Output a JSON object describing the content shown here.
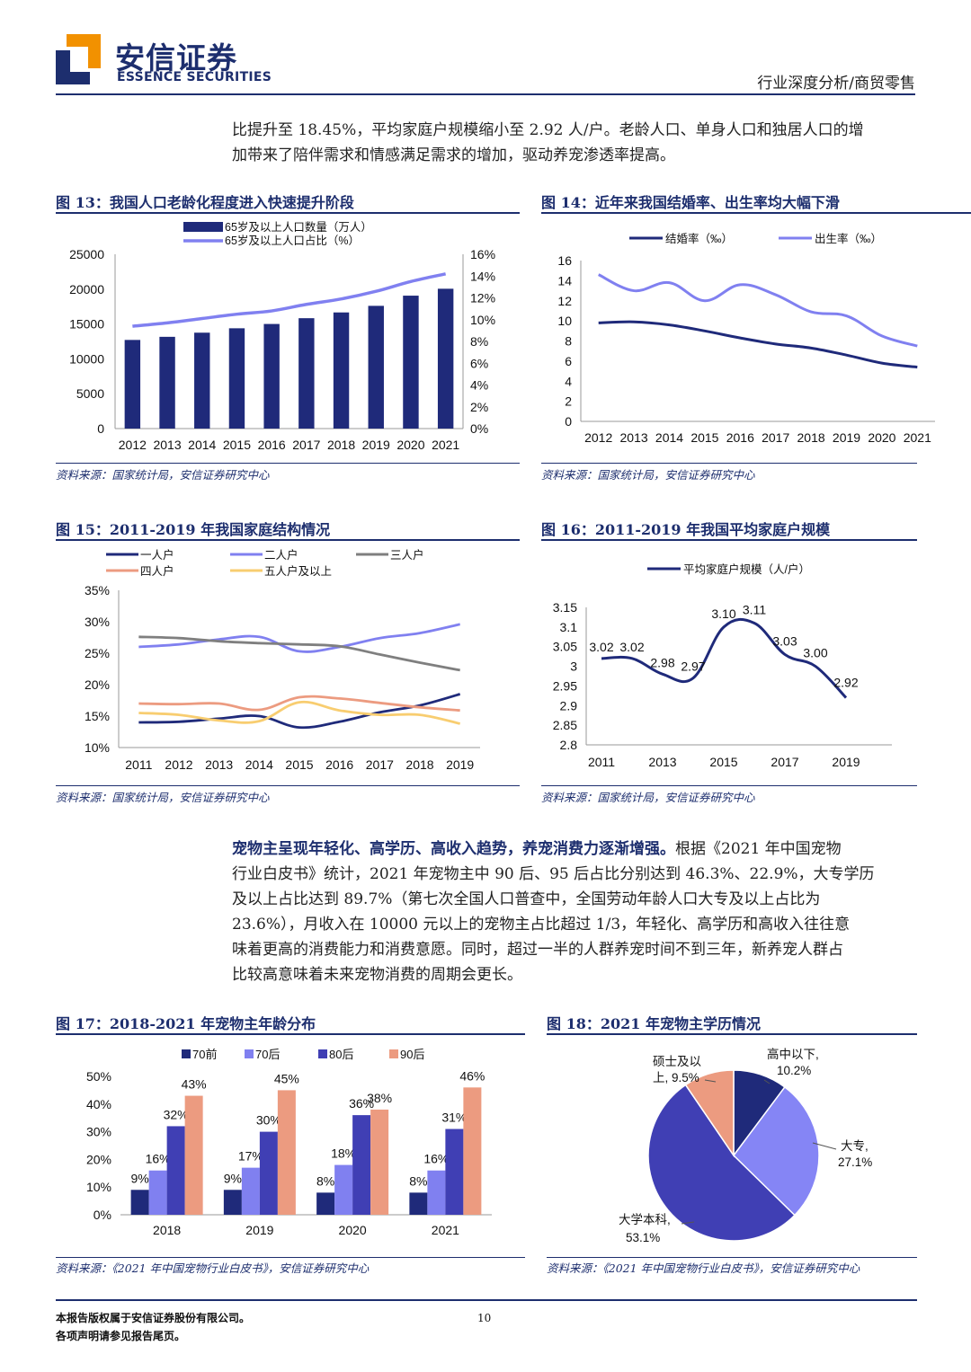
{
  "header": {
    "brand_cn": "安信证券",
    "brand_en": "ESSENCE SECURITIES",
    "report_type": "行业深度分析/商贸零售"
  },
  "colors": {
    "navy": "#1d2e6e",
    "bar": "#1f2a7a",
    "light": "#8080f0",
    "gray": "#7f7f7f",
    "salmon": "#ec9b80",
    "yellow": "#f8cd70",
    "medium": "#403fb4",
    "pie_light": "#8585f5"
  },
  "para1": {
    "line1": "比提升至 18.45%，平均家庭户规模缩小至 2.92 人/户。老龄人口、单身人口和独居人口的增",
    "line2": "加带来了陪伴需求和情感满足需求的增加，驱动养宠渗透率提高。"
  },
  "para2": {
    "bold": "宠物主呈现年轻化、高学历、高收入趋势，养宠消费力逐渐增强。",
    "line1_rest": "根据《2021 年中国宠物",
    "line2": "行业白皮书》统计，2021 年宠物主中 90 后、95 后占比分别达到 46.3%、22.9%，大专学历",
    "line3": "及以上占比达到 89.7%（第七次全国人口普查中，全国劳动年龄人口大专及以上占比为",
    "line4": "23.6%），月收入在 10000 元以上的宠物主占比超过 1/3，年轻化、高学历和高收入往往意",
    "line5": "味着更高的消费能力和消费意愿。同时，超过一半的人群养宠时间不到三年，新养宠人群占",
    "line6": "比较高意味着未来宠物消费的周期会更长。"
  },
  "fig13": {
    "title": "图 13：我国人口老龄化程度进入快速提升阶段",
    "source": "资料来源：国家统计局，安信证券研究中心"
  },
  "fig14": {
    "title": "图 14：近年来我国结婚率、出生率均大幅下滑",
    "source": "资料来源：国家统计局，安信证券研究中心"
  },
  "fig15": {
    "title": "图 15：2011-2019 年我国家庭结构情况",
    "source": "资料来源：国家统计局，安信证券研究中心"
  },
  "fig16": {
    "title": "图 16：2011-2019 年我国平均家庭户规模",
    "source": "资料来源：国家统计局，安信证券研究中心"
  },
  "fig17": {
    "title": "图 17：2018-2021 年宠物主年龄分布",
    "source": "资料来源：《2021 年中国宠物行业白皮书》，安信证券研究中心"
  },
  "fig18": {
    "title": "图 18：2021 年宠物主学历情况",
    "source": "资料来源：《2021 年中国宠物行业白皮书》，安信证券研究中心"
  },
  "footer": {
    "copyright": "本报告版权属于安信证券股份有限公司。",
    "disclaimer": "各项声明请参见报告尾页。",
    "page": "10"
  },
  "chart_data": [
    {
      "id": "fig13",
      "type": "bar+line",
      "categories": [
        "2012",
        "2013",
        "2014",
        "2015",
        "2016",
        "2017",
        "2018",
        "2019",
        "2020",
        "2021"
      ],
      "series": [
        {
          "name": "65岁及以上人口数量（万人）",
          "type": "bar",
          "axis": "left",
          "values": [
            12714,
            13161,
            13755,
            14386,
            15003,
            15831,
            16658,
            17603,
            19064,
            20056
          ]
        },
        {
          "name": "65岁及以上人口占比（%）",
          "type": "line",
          "axis": "right",
          "values": [
            9.4,
            9.7,
            10.1,
            10.5,
            10.8,
            11.4,
            11.9,
            12.6,
            13.5,
            14.2
          ]
        }
      ],
      "left_ticks": [
        "25000",
        "20000",
        "15000",
        "10000",
        "5000",
        "0"
      ],
      "ylim_left": [
        0,
        25000
      ],
      "right_ticks": [
        "16%",
        "14%",
        "12%",
        "10%",
        "8%",
        "6%",
        "4%",
        "2%",
        "0%"
      ],
      "ylim_right": [
        0,
        16
      ]
    },
    {
      "id": "fig14",
      "type": "line",
      "categories": [
        "2012",
        "2013",
        "2014",
        "2015",
        "2016",
        "2017",
        "2018",
        "2019",
        "2020",
        "2021"
      ],
      "series": [
        {
          "name": "结婚率（‰）",
          "values": [
            9.8,
            9.9,
            9.6,
            9.0,
            8.3,
            7.7,
            7.3,
            6.6,
            5.8,
            5.4
          ]
        },
        {
          "name": "出生率（‰）",
          "values": [
            14.6,
            13.0,
            13.8,
            12.0,
            13.6,
            12.6,
            10.9,
            10.5,
            8.5,
            7.5
          ]
        }
      ],
      "y_ticks": [
        "16",
        "14",
        "12",
        "10",
        "8",
        "6",
        "4",
        "2",
        "0"
      ],
      "ylim": [
        0,
        16
      ]
    },
    {
      "id": "fig15",
      "type": "line",
      "categories": [
        "2011",
        "2012",
        "2013",
        "2014",
        "2015",
        "2016",
        "2017",
        "2018",
        "2019"
      ],
      "series": [
        {
          "name": "一人户",
          "values": [
            14.0,
            14.1,
            14.6,
            15.0,
            13.2,
            14.1,
            15.6,
            16.7,
            18.5
          ]
        },
        {
          "name": "二人户",
          "values": [
            26.0,
            26.4,
            27.2,
            27.6,
            25.3,
            26.0,
            27.4,
            28.2,
            29.6
          ]
        },
        {
          "name": "三人户",
          "values": [
            27.6,
            27.4,
            26.9,
            26.6,
            26.4,
            26.1,
            24.8,
            23.5,
            22.3
          ]
        },
        {
          "name": "四人户",
          "values": [
            17.0,
            16.9,
            17.0,
            16.0,
            18.0,
            17.8,
            17.1,
            16.4,
            15.9
          ]
        },
        {
          "name": "五人户及以上",
          "values": [
            15.5,
            15.2,
            14.3,
            14.2,
            17.2,
            15.9,
            15.2,
            15.2,
            13.8
          ]
        }
      ],
      "y_ticks": [
        "35%",
        "30%",
        "25%",
        "20%",
        "15%",
        "10%"
      ],
      "ylim": [
        10,
        35
      ]
    },
    {
      "id": "fig16",
      "type": "line",
      "x": [
        "2011",
        "2012",
        "2013",
        "2014",
        "2015",
        "2016",
        "2017",
        "2018",
        "2019"
      ],
      "x_tick_labels": [
        "2011",
        "2013",
        "2015",
        "2017",
        "2019"
      ],
      "series": [
        {
          "name": "平均家庭户规模（人/户）",
          "values": [
            3.02,
            3.02,
            2.98,
            2.97,
            3.1,
            3.11,
            3.03,
            3.0,
            2.92
          ]
        }
      ],
      "data_labels": [
        "3.02",
        "3.02",
        "2.98",
        "2.97",
        "3.10",
        "3.11",
        "3.03",
        "3.00",
        "2.92"
      ],
      "y_ticks": [
        "3.15",
        "3.1",
        "3.05",
        "3",
        "2.95",
        "2.9",
        "2.85",
        "2.8"
      ],
      "ylim": [
        2.8,
        3.15
      ]
    },
    {
      "id": "fig17",
      "type": "bar",
      "categories": [
        "2018",
        "2019",
        "2020",
        "2021"
      ],
      "series": [
        {
          "name": "70前",
          "values": [
            9,
            9,
            8,
            8
          ],
          "labels": [
            "9%",
            "9%",
            "8%",
            "8%"
          ]
        },
        {
          "name": "70后",
          "values": [
            16,
            17,
            18,
            16
          ],
          "labels": [
            "16%",
            "17%",
            "18%",
            "16%"
          ]
        },
        {
          "name": "80后",
          "values": [
            32,
            30,
            36,
            31
          ],
          "labels": [
            "32%",
            "30%",
            "36%",
            "31%"
          ]
        },
        {
          "name": "90后",
          "values": [
            43,
            45,
            38,
            46
          ],
          "labels": [
            "43%",
            "45%",
            "38%",
            "46%"
          ]
        }
      ],
      "y_ticks": [
        "50%",
        "40%",
        "30%",
        "20%",
        "10%",
        "0%"
      ],
      "ylim": [
        0,
        50
      ]
    },
    {
      "id": "fig18",
      "type": "pie",
      "slices": [
        {
          "name": "高中以下",
          "value": 10.2,
          "label_name": "高中以下,",
          "label_value": "10.2%"
        },
        {
          "name": "大专",
          "value": 27.1,
          "label_name": "大专,",
          "label_value": "27.1%"
        },
        {
          "name": "大学本科",
          "value": 53.1,
          "label_name": "大学本科,",
          "label_value": "53.1%"
        },
        {
          "name": "硕士及以上",
          "value": 9.5,
          "label_name": "硕士及以",
          "label_value": "上, 9.5%"
        }
      ]
    }
  ]
}
